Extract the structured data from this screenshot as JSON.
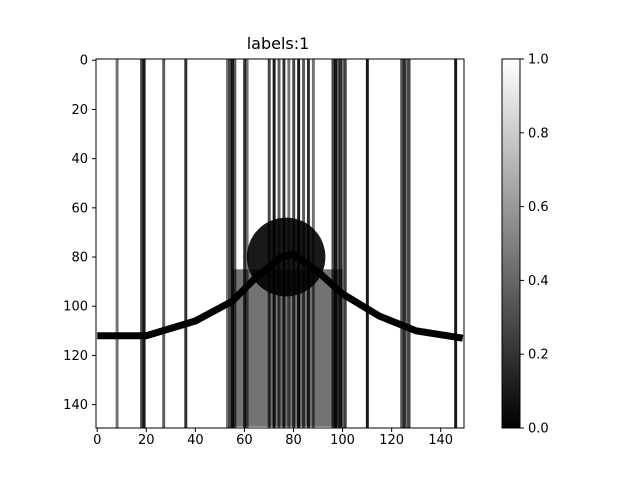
{
  "chart_data": {
    "type": "heatmap",
    "title": "labels:1",
    "xlabel": "",
    "ylabel": "",
    "colormap": "gray",
    "xlim": [
      0,
      149
    ],
    "ylim": [
      149,
      0
    ],
    "x_ticks": [
      0,
      20,
      40,
      60,
      80,
      100,
      120,
      140
    ],
    "y_ticks": [
      0,
      20,
      40,
      60,
      80,
      100,
      120,
      140
    ],
    "colorbar": {
      "range": [
        0.0,
        1.0
      ],
      "ticks": [
        "0.0",
        "0.2",
        "0.4",
        "0.6",
        "0.8",
        "1.0"
      ]
    },
    "features": {
      "background_value": 1.0,
      "curve_value": 0.0,
      "curve_points": [
        [
          0,
          112
        ],
        [
          20,
          112
        ],
        [
          40,
          106
        ],
        [
          55,
          98
        ],
        [
          65,
          88
        ],
        [
          75,
          80
        ],
        [
          80,
          79
        ],
        [
          90,
          86
        ],
        [
          100,
          95
        ],
        [
          115,
          104
        ],
        [
          130,
          110
        ],
        [
          149,
          113
        ]
      ],
      "dark_blob_center": [
        77,
        80
      ],
      "dark_streak_columns": [
        8,
        18,
        19,
        27,
        36,
        53,
        54,
        55,
        56,
        60,
        61,
        70,
        72,
        74,
        76,
        78,
        80,
        82,
        84,
        86,
        88,
        96,
        97,
        98,
        99,
        100,
        101,
        110,
        124,
        125,
        126,
        127,
        146
      ]
    }
  },
  "colors": {
    "axis": "#000000",
    "background": "#ffffff"
  }
}
